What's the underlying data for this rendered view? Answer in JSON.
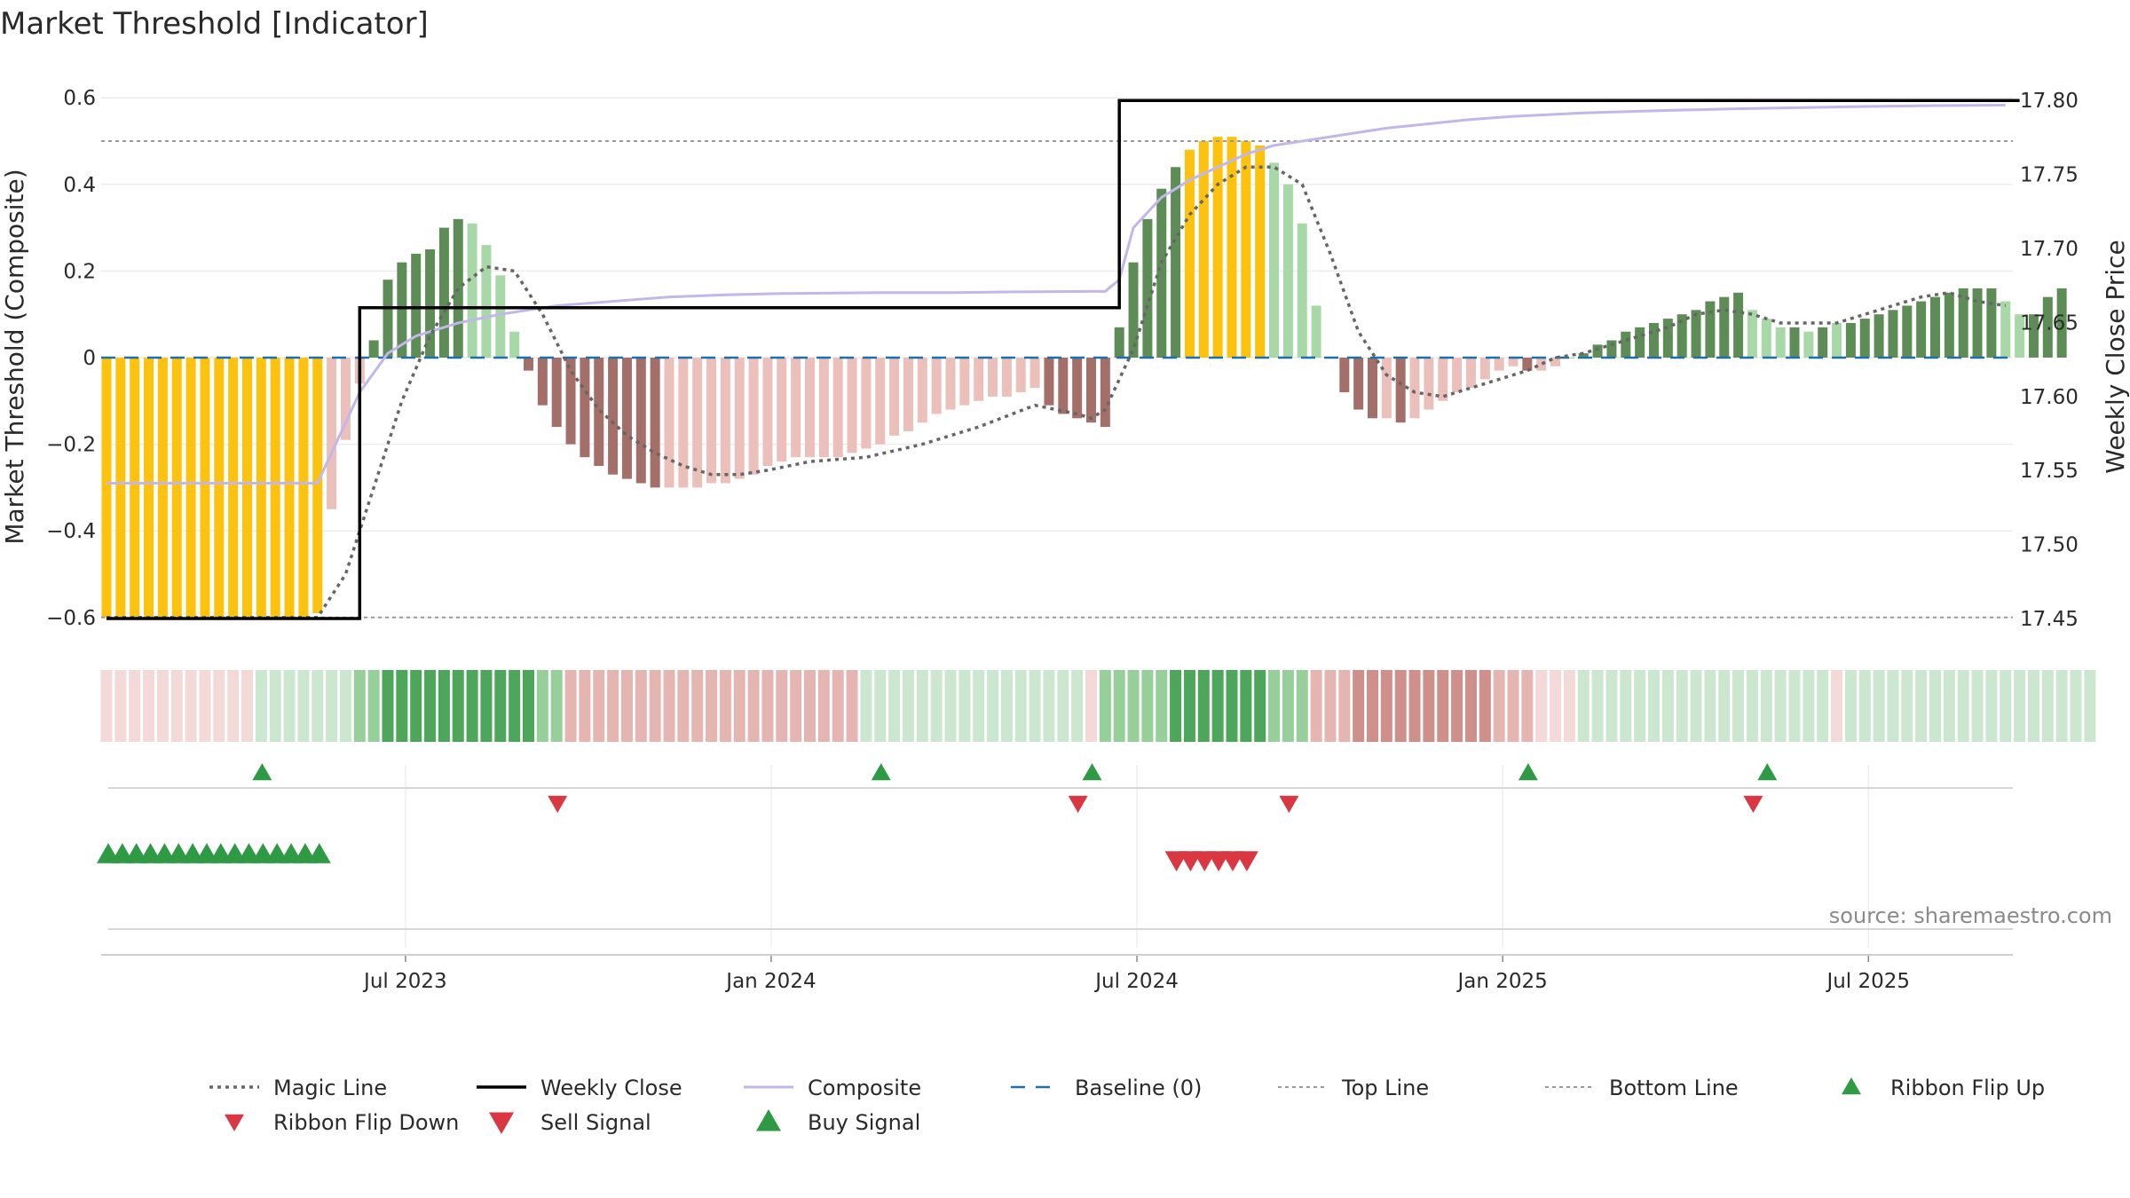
{
  "chart_data": {
    "type": "bar",
    "title": "Market Threshold [Indicator]",
    "ylabel_left": "Market Threshold (Composite)",
    "ylabel_right": "Weekly Close Price",
    "source": "source: sharemaestro.com",
    "ylim_left": [
      -0.65,
      0.6
    ],
    "ylim_right": [
      17.44,
      17.8
    ],
    "left_ticks": [
      {
        "v": 0.6,
        "label": "0.6"
      },
      {
        "v": 0.4,
        "label": "0.4"
      },
      {
        "v": 0.2,
        "label": "0.2"
      },
      {
        "v": 0,
        "label": "0"
      },
      {
        "v": -0.2,
        "label": "−0.2"
      },
      {
        "v": -0.4,
        "label": "−0.4"
      },
      {
        "v": -0.6,
        "label": "−0.6"
      }
    ],
    "right_ticks": [
      {
        "v": 17.8,
        "label": "17.80"
      },
      {
        "v": 17.75,
        "label": "17.75"
      },
      {
        "v": 17.7,
        "label": "17.70"
      },
      {
        "v": 17.65,
        "label": "17.65"
      },
      {
        "v": 17.6,
        "label": "17.60"
      },
      {
        "v": 17.55,
        "label": "17.55"
      },
      {
        "v": 17.5,
        "label": "17.50"
      },
      {
        "v": 17.45,
        "label": "17.45"
      }
    ],
    "x_ticks": [
      {
        "week": 21,
        "label": "Jul 2023"
      },
      {
        "week": 47,
        "label": "Jan 2024"
      },
      {
        "week": 73,
        "label": "Jul 2024"
      },
      {
        "week": 99,
        "label": "Jan 2025"
      },
      {
        "week": 125,
        "label": "Jul 2025"
      }
    ],
    "top_line": 0.5,
    "bottom_line": -0.6,
    "baseline": 0,
    "colors": {
      "yellow": "#fdc20e",
      "green_dark": "#5e8c57",
      "green_light": "#a8d8a8",
      "red_dark": "#a46e69",
      "red_light": "#ebbfba",
      "weekly_close": "#000000",
      "composite": "#c3b6ea",
      "magic": "#666666",
      "baseline": "#1f6fa8",
      "top_bottom": "#999999",
      "signal_green": "#2e9a44",
      "signal_red": "#d93843"
    },
    "weeks": 136,
    "series": [
      {
        "name": "Composite",
        "values": [
          -0.6,
          -0.6,
          -0.6,
          -0.6,
          -0.6,
          -0.6,
          -0.6,
          -0.6,
          -0.6,
          -0.6,
          -0.6,
          -0.6,
          -0.6,
          -0.6,
          -0.6,
          -0.59,
          -0.35,
          -0.19,
          -0.06,
          0.04,
          0.18,
          0.22,
          0.24,
          0.25,
          0.3,
          0.32,
          0.31,
          0.26,
          0.19,
          0.06,
          -0.03,
          -0.11,
          -0.16,
          -0.2,
          -0.23,
          -0.25,
          -0.27,
          -0.28,
          -0.29,
          -0.3,
          -0.3,
          -0.3,
          -0.3,
          -0.29,
          -0.29,
          -0.28,
          -0.27,
          -0.25,
          -0.24,
          -0.23,
          -0.23,
          -0.23,
          -0.23,
          -0.22,
          -0.21,
          -0.2,
          -0.18,
          -0.17,
          -0.15,
          -0.13,
          -0.12,
          -0.11,
          -0.1,
          -0.09,
          -0.09,
          -0.08,
          -0.07,
          -0.11,
          -0.13,
          -0.14,
          -0.15,
          -0.16,
          0.07,
          0.22,
          0.32,
          0.39,
          0.44,
          0.48,
          0.5,
          0.51,
          0.51,
          0.5,
          0.49,
          0.45,
          0.4,
          0.31,
          0.12,
          0.0,
          -0.08,
          -0.12,
          -0.14,
          -0.14,
          -0.15,
          -0.14,
          -0.12,
          -0.1,
          -0.08,
          -0.07,
          -0.05,
          -0.03,
          -0.02,
          -0.03,
          -0.03,
          -0.02,
          0.0,
          0.01,
          0.03,
          0.04,
          0.06,
          0.07,
          0.08,
          0.09,
          0.1,
          0.11,
          0.13,
          0.14,
          0.15,
          0.11,
          0.09,
          0.07,
          0.07,
          0.06,
          0.07,
          0.08,
          0.08,
          0.09,
          0.1,
          0.11,
          0.12,
          0.13,
          0.14,
          0.15,
          0.16,
          0.16,
          0.16,
          0.13,
          0.1,
          0.1,
          0.14,
          0.16
        ]
      },
      {
        "name": "Weekly Close",
        "values": [
          17.45,
          17.45,
          17.45,
          17.45,
          17.45,
          17.45,
          17.45,
          17.45,
          17.45,
          17.45,
          17.45,
          17.45,
          17.45,
          17.45,
          17.45,
          17.45,
          17.45,
          17.45,
          17.66,
          17.66,
          17.66,
          17.66,
          17.66,
          17.66,
          17.66,
          17.66,
          17.66,
          17.66,
          17.66,
          17.66,
          17.66,
          17.66,
          17.66,
          17.66,
          17.66,
          17.66,
          17.66,
          17.66,
          17.66,
          17.66,
          17.66,
          17.66,
          17.66,
          17.66,
          17.66,
          17.66,
          17.66,
          17.66,
          17.66,
          17.66,
          17.66,
          17.66,
          17.66,
          17.66,
          17.66,
          17.66,
          17.66,
          17.66,
          17.66,
          17.66,
          17.66,
          17.66,
          17.66,
          17.66,
          17.66,
          17.66,
          17.66,
          17.66,
          17.66,
          17.66,
          17.66,
          17.66,
          17.8,
          17.8,
          17.8,
          17.8,
          17.8,
          17.8,
          17.8,
          17.8,
          17.8,
          17.8,
          17.8,
          17.8,
          17.8,
          17.8,
          17.8,
          17.8,
          17.8,
          17.8,
          17.8,
          17.8,
          17.8,
          17.8,
          17.8,
          17.8,
          17.8,
          17.8,
          17.8,
          17.8,
          17.8,
          17.8,
          17.8,
          17.8,
          17.8,
          17.8,
          17.8,
          17.8,
          17.8,
          17.8,
          17.8,
          17.8,
          17.8,
          17.8,
          17.8,
          17.8,
          17.8,
          17.8,
          17.8,
          17.8,
          17.8,
          17.8,
          17.8,
          17.8,
          17.8,
          17.8,
          17.8,
          17.8,
          17.8,
          17.8,
          17.8,
          17.8,
          17.8,
          17.8,
          17.8,
          17.8,
          17.8
        ]
      },
      {
        "name": "Magic Line",
        "points": [
          [
            0,
            -0.6
          ],
          [
            15,
            -0.6
          ],
          [
            17,
            -0.5
          ],
          [
            19,
            -0.3
          ],
          [
            21,
            -0.1
          ],
          [
            23,
            0.05
          ],
          [
            25,
            0.16
          ],
          [
            27,
            0.21
          ],
          [
            29,
            0.2
          ],
          [
            31,
            0.1
          ],
          [
            33,
            -0.03
          ],
          [
            35,
            -0.12
          ],
          [
            37,
            -0.18
          ],
          [
            39,
            -0.22
          ],
          [
            41,
            -0.25
          ],
          [
            43,
            -0.27
          ],
          [
            45,
            -0.27
          ],
          [
            47,
            -0.26
          ],
          [
            50,
            -0.24
          ],
          [
            54,
            -0.23
          ],
          [
            58,
            -0.2
          ],
          [
            62,
            -0.16
          ],
          [
            66,
            -0.11
          ],
          [
            69,
            -0.13
          ],
          [
            70,
            -0.14
          ],
          [
            71,
            -0.12
          ],
          [
            73,
            0.02
          ],
          [
            75,
            0.22
          ],
          [
            77,
            0.33
          ],
          [
            79,
            0.4
          ],
          [
            81,
            0.44
          ],
          [
            83,
            0.44
          ],
          [
            85,
            0.4
          ],
          [
            87,
            0.24
          ],
          [
            89,
            0.06
          ],
          [
            91,
            -0.04
          ],
          [
            93,
            -0.08
          ],
          [
            95,
            -0.09
          ],
          [
            97,
            -0.07
          ],
          [
            99,
            -0.05
          ],
          [
            101,
            -0.03
          ],
          [
            103,
            0.0
          ],
          [
            105,
            0.01
          ],
          [
            107,
            0.03
          ],
          [
            109,
            0.05
          ],
          [
            111,
            0.07
          ],
          [
            113,
            0.1
          ],
          [
            115,
            0.11
          ],
          [
            117,
            0.1
          ],
          [
            119,
            0.08
          ],
          [
            121,
            0.08
          ],
          [
            123,
            0.08
          ],
          [
            125,
            0.1
          ],
          [
            127,
            0.12
          ],
          [
            129,
            0.14
          ],
          [
            131,
            0.15
          ],
          [
            133,
            0.13
          ],
          [
            135,
            0.12
          ]
        ]
      },
      {
        "name": "Composite Line",
        "points": [
          [
            0,
            -0.29
          ],
          [
            15,
            -0.29
          ],
          [
            16,
            -0.22
          ],
          [
            18,
            -0.08
          ],
          [
            20,
            0.01
          ],
          [
            22,
            0.05
          ],
          [
            25,
            0.08
          ],
          [
            28,
            0.1
          ],
          [
            32,
            0.12
          ],
          [
            36,
            0.13
          ],
          [
            40,
            0.14
          ],
          [
            44,
            0.145
          ],
          [
            48,
            0.148
          ],
          [
            55,
            0.15
          ],
          [
            60,
            0.15
          ],
          [
            65,
            0.152
          ],
          [
            70,
            0.153
          ],
          [
            71,
            0.153
          ],
          [
            72,
            0.18
          ],
          [
            73,
            0.3
          ],
          [
            75,
            0.37
          ],
          [
            77,
            0.41
          ],
          [
            79,
            0.44
          ],
          [
            81,
            0.47
          ],
          [
            83,
            0.49
          ],
          [
            85,
            0.5
          ],
          [
            87,
            0.51
          ],
          [
            89,
            0.52
          ],
          [
            91,
            0.53
          ],
          [
            94,
            0.54
          ],
          [
            97,
            0.55
          ],
          [
            100,
            0.557
          ],
          [
            105,
            0.565
          ],
          [
            110,
            0.57
          ],
          [
            115,
            0.574
          ],
          [
            120,
            0.577
          ],
          [
            125,
            0.58
          ],
          [
            130,
            0.582
          ],
          [
            135,
            0.583
          ]
        ]
      },
      {
        "name": "Ribbon Flip Up",
        "weeks": [
          11,
          55,
          70,
          101,
          118
        ]
      },
      {
        "name": "Ribbon Flip Down",
        "weeks": [
          32,
          69,
          84,
          117
        ]
      },
      {
        "name": "Buy Signal",
        "weeks": [
          0,
          1,
          2,
          3,
          4,
          5,
          6,
          7,
          8,
          9,
          10,
          11,
          12,
          13,
          14,
          15
        ]
      },
      {
        "name": "Sell Signal",
        "weeks": [
          76,
          77,
          78,
          79,
          80,
          81
        ]
      }
    ],
    "ribbon": [
      "rl",
      "rl",
      "rl",
      "rl",
      "rl",
      "rl",
      "rl",
      "rl",
      "rl",
      "rl",
      "rl",
      "gl",
      "gl",
      "gl",
      "gl",
      "gl",
      "gl",
      "gl",
      "gm",
      "gm",
      "gd",
      "gd",
      "gd",
      "gd",
      "gd",
      "gd",
      "gd",
      "gd",
      "gd",
      "gd",
      "gd",
      "gm",
      "gm",
      "rm",
      "rm",
      "rm",
      "rm",
      "rm",
      "rm",
      "rm",
      "rm",
      "rm",
      "rm",
      "rm",
      "rm",
      "rm",
      "rm",
      "rm",
      "rm",
      "rm",
      "rm",
      "rm",
      "rm",
      "rm",
      "gl",
      "gl",
      "gl",
      "gl",
      "gl",
      "gl",
      "gl",
      "gl",
      "gl",
      "gl",
      "gl",
      "gl",
      "gl",
      "gl",
      "gl",
      "gl",
      "rl",
      "gm",
      "gm",
      "gm",
      "gm",
      "gm",
      "gd",
      "gd",
      "gd",
      "gd",
      "gd",
      "gd",
      "gd",
      "gm",
      "gm",
      "gm",
      "rm",
      "rm",
      "rm",
      "rd",
      "rd",
      "rd",
      "rd",
      "rd",
      "rd",
      "rd",
      "rd",
      "rd",
      "rd",
      "rm",
      "rm",
      "rm",
      "rl",
      "rl",
      "rl",
      "gl",
      "gl",
      "gl",
      "gl",
      "gl",
      "gl",
      "gl",
      "gl",
      "gl",
      "gl",
      "gl",
      "gl",
      "gl",
      "gl",
      "gl",
      "gl",
      "gl",
      "gl",
      "rl",
      "gl",
      "gl",
      "gl",
      "gl",
      "gl",
      "gl",
      "gl",
      "gl",
      "gl",
      "gl",
      "gl",
      "gl",
      "gl",
      "gl",
      "gl",
      "gl",
      "gl",
      "gl"
    ],
    "legend": [
      {
        "label": "Magic Line",
        "kind": "dotted"
      },
      {
        "label": "Weekly Close",
        "kind": "solid-black"
      },
      {
        "label": "Composite",
        "kind": "solid-purple"
      },
      {
        "label": "Baseline (0)",
        "kind": "dashed-blue"
      },
      {
        "label": "Top Line",
        "kind": "dotted-grey"
      },
      {
        "label": "Bottom Line",
        "kind": "dotted-grey"
      },
      {
        "label": "Ribbon Flip Up",
        "kind": "tri-up-green"
      },
      {
        "label": "Ribbon Flip Down",
        "kind": "tri-down-red"
      },
      {
        "label": "Sell Signal",
        "kind": "tri-down-red-big"
      },
      {
        "label": "Buy Signal",
        "kind": "tri-up-green-big"
      }
    ]
  }
}
